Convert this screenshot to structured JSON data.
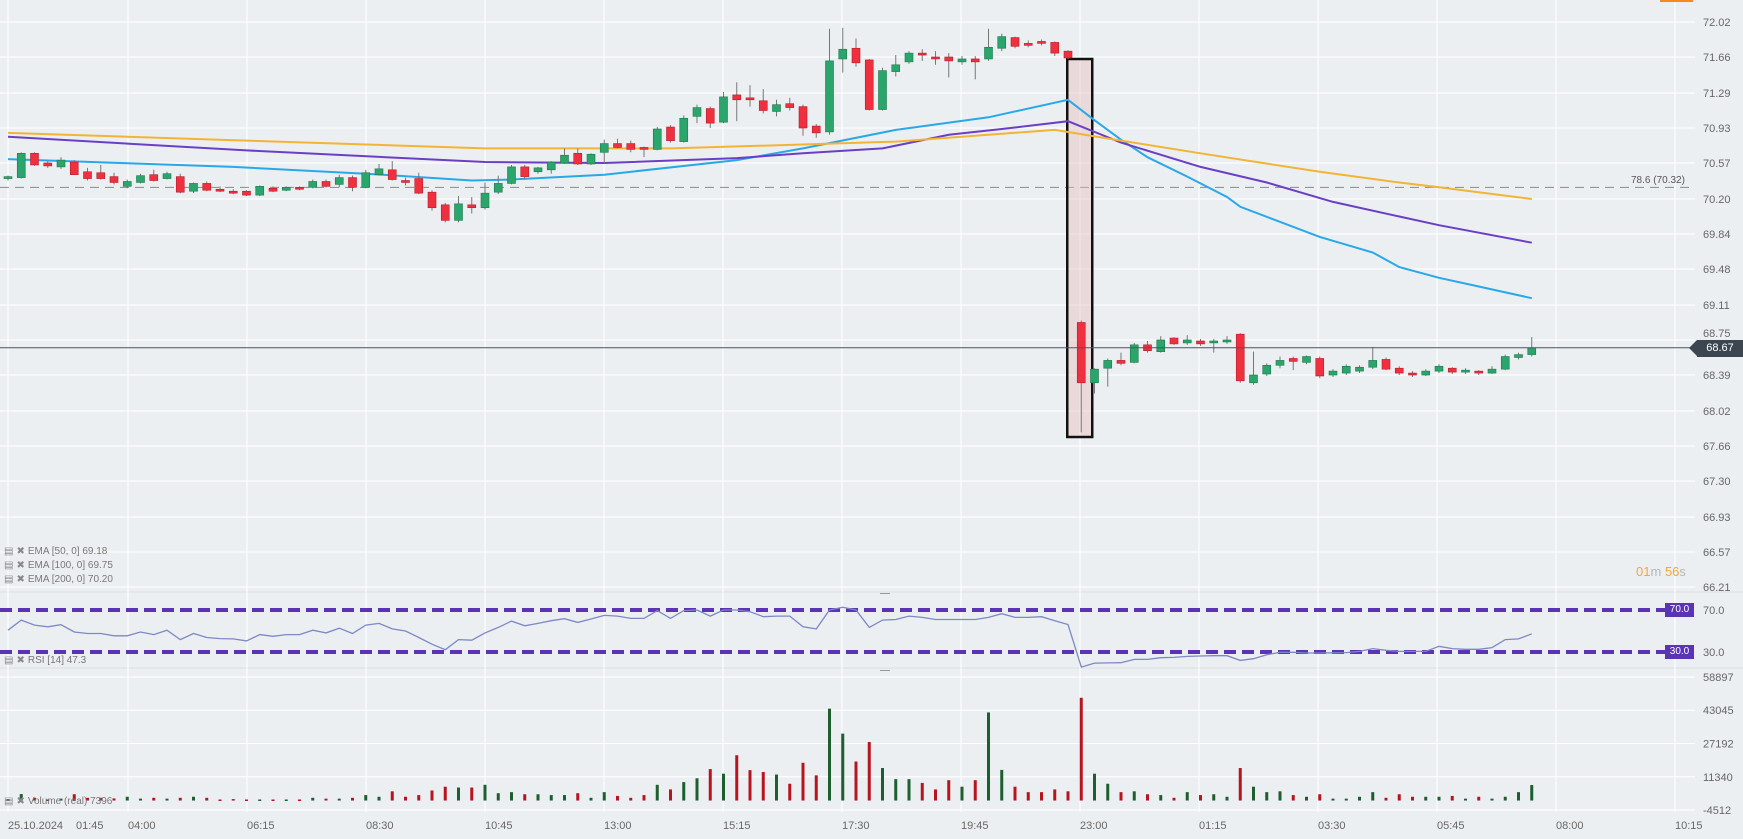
{
  "chart_data": {
    "type": "candlestick",
    "title": "",
    "price_axis": {
      "ticks": [
        72.02,
        71.66,
        71.29,
        70.93,
        70.57,
        70.2,
        69.84,
        69.48,
        69.11,
        68.75,
        68.39,
        68.02,
        67.66,
        67.3,
        66.93,
        66.57,
        66.21
      ],
      "range": [
        66.21,
        72.02
      ]
    },
    "time_axis": {
      "labels": [
        "25.10.2024",
        "01:45",
        "04:00",
        "06:15",
        "08:30",
        "10:45",
        "13:00",
        "15:15",
        "17:30",
        "19:45",
        "23:00",
        "01:15",
        "03:30",
        "05:45",
        "08:00",
        "10:15"
      ]
    },
    "candle_interval_minutes": 15,
    "candles_ohlc": [
      [
        70.41,
        70.44,
        70.39,
        70.43
      ],
      [
        70.42,
        70.68,
        70.41,
        70.67
      ],
      [
        70.67,
        70.68,
        70.54,
        70.55
      ],
      [
        70.57,
        70.59,
        70.52,
        70.54
      ],
      [
        70.53,
        70.63,
        70.51,
        70.6
      ],
      [
        70.58,
        70.6,
        70.45,
        70.45
      ],
      [
        70.48,
        70.52,
        70.39,
        70.41
      ],
      [
        70.47,
        70.55,
        70.4,
        70.41
      ],
      [
        70.43,
        70.47,
        70.35,
        70.37
      ],
      [
        70.33,
        70.4,
        70.31,
        70.38
      ],
      [
        70.37,
        70.46,
        70.36,
        70.44
      ],
      [
        70.45,
        70.5,
        70.38,
        70.39
      ],
      [
        70.41,
        70.48,
        70.4,
        70.46
      ],
      [
        70.43,
        70.46,
        70.26,
        70.27
      ],
      [
        70.28,
        70.37,
        70.26,
        70.36
      ],
      [
        70.36,
        70.38,
        70.28,
        70.29
      ],
      [
        70.3,
        70.33,
        70.27,
        70.28
      ],
      [
        70.28,
        70.3,
        70.25,
        70.26
      ],
      [
        70.28,
        70.29,
        70.23,
        70.24
      ],
      [
        70.24,
        70.34,
        70.23,
        70.33
      ],
      [
        70.31,
        70.33,
        70.27,
        70.28
      ],
      [
        70.29,
        70.33,
        70.28,
        70.32
      ],
      [
        70.32,
        70.33,
        70.29,
        70.3
      ],
      [
        70.32,
        70.4,
        70.31,
        70.38
      ],
      [
        70.38,
        70.4,
        70.32,
        70.33
      ],
      [
        70.35,
        70.45,
        70.32,
        70.42
      ],
      [
        70.42,
        70.44,
        70.28,
        70.32
      ],
      [
        70.32,
        70.5,
        70.31,
        70.47
      ],
      [
        70.45,
        70.56,
        70.44,
        70.51
      ],
      [
        70.5,
        70.59,
        70.39,
        70.4
      ],
      [
        70.39,
        70.42,
        70.34,
        70.37
      ],
      [
        70.41,
        70.47,
        70.25,
        70.26
      ],
      [
        70.27,
        70.29,
        70.08,
        70.11
      ],
      [
        70.14,
        70.16,
        69.96,
        69.98
      ],
      [
        69.98,
        70.23,
        69.96,
        70.15
      ],
      [
        70.14,
        70.22,
        70.05,
        70.11
      ],
      [
        70.11,
        70.37,
        70.09,
        70.26
      ],
      [
        70.27,
        70.44,
        70.25,
        70.36
      ],
      [
        70.36,
        70.55,
        70.35,
        70.53
      ],
      [
        70.53,
        70.55,
        70.4,
        70.43
      ],
      [
        70.48,
        70.53,
        70.46,
        70.52
      ],
      [
        70.5,
        70.59,
        70.46,
        70.58
      ],
      [
        70.57,
        70.72,
        70.56,
        70.65
      ],
      [
        70.67,
        70.72,
        70.55,
        70.56
      ],
      [
        70.56,
        70.67,
        70.55,
        70.66
      ],
      [
        70.68,
        70.81,
        70.56,
        70.77
      ],
      [
        70.77,
        70.82,
        70.72,
        70.73
      ],
      [
        70.77,
        70.8,
        70.68,
        70.71
      ],
      [
        70.73,
        70.74,
        70.63,
        70.71
      ],
      [
        70.71,
        70.94,
        70.7,
        70.92
      ],
      [
        70.94,
        70.96,
        70.78,
        70.8
      ],
      [
        70.79,
        71.06,
        70.78,
        71.03
      ],
      [
        71.05,
        71.17,
        70.98,
        71.14
      ],
      [
        71.13,
        71.15,
        70.93,
        70.98
      ],
      [
        70.99,
        71.3,
        70.98,
        71.25
      ],
      [
        71.27,
        71.4,
        71.0,
        71.22
      ],
      [
        71.24,
        71.37,
        71.15,
        71.22
      ],
      [
        71.21,
        71.33,
        71.08,
        71.11
      ],
      [
        71.1,
        71.22,
        71.05,
        71.17
      ],
      [
        71.18,
        71.24,
        71.11,
        71.14
      ],
      [
        71.15,
        71.17,
        70.85,
        70.93
      ],
      [
        70.95,
        70.97,
        70.83,
        70.88
      ],
      [
        70.89,
        71.95,
        70.86,
        71.62
      ],
      [
        71.64,
        71.96,
        71.5,
        71.74
      ],
      [
        71.75,
        71.85,
        71.56,
        71.6
      ],
      [
        71.63,
        71.64,
        71.11,
        71.12
      ],
      [
        71.12,
        71.55,
        71.11,
        71.52
      ],
      [
        71.51,
        71.68,
        71.46,
        71.58
      ],
      [
        71.61,
        71.72,
        71.59,
        71.7
      ],
      [
        71.7,
        71.74,
        71.62,
        71.68
      ],
      [
        71.66,
        71.72,
        71.58,
        71.64
      ],
      [
        71.66,
        71.7,
        71.45,
        71.62
      ],
      [
        71.61,
        71.67,
        71.58,
        71.64
      ],
      [
        71.64,
        71.67,
        71.43,
        71.61
      ],
      [
        71.64,
        71.95,
        71.62,
        71.76
      ],
      [
        71.75,
        71.9,
        71.72,
        71.87
      ],
      [
        71.86,
        71.87,
        71.75,
        71.77
      ],
      [
        71.8,
        71.83,
        71.76,
        71.78
      ],
      [
        71.82,
        71.84,
        71.78,
        71.8
      ],
      [
        71.81,
        71.82,
        71.67,
        71.7
      ],
      [
        71.72,
        71.73,
        71.64,
        71.65
      ],
      [
        68.93,
        68.95,
        67.8,
        68.31
      ],
      [
        68.31,
        68.46,
        68.2,
        68.45
      ],
      [
        68.46,
        68.56,
        68.27,
        68.54
      ],
      [
        68.54,
        68.62,
        68.49,
        68.51
      ],
      [
        68.52,
        68.72,
        68.51,
        68.7
      ],
      [
        68.7,
        68.74,
        68.62,
        68.64
      ],
      [
        68.63,
        68.79,
        68.62,
        68.75
      ],
      [
        68.77,
        68.78,
        68.7,
        68.71
      ],
      [
        68.72,
        68.8,
        68.7,
        68.75
      ],
      [
        68.74,
        68.76,
        68.69,
        68.71
      ],
      [
        68.72,
        68.76,
        68.62,
        68.74
      ],
      [
        68.73,
        68.79,
        68.71,
        68.75
      ],
      [
        68.81,
        68.82,
        68.31,
        68.33
      ],
      [
        68.31,
        68.63,
        68.29,
        68.39
      ],
      [
        68.4,
        68.51,
        68.38,
        68.49
      ],
      [
        68.49,
        68.58,
        68.46,
        68.54
      ],
      [
        68.56,
        68.58,
        68.44,
        68.53
      ],
      [
        68.52,
        68.59,
        68.5,
        68.58
      ],
      [
        68.56,
        68.58,
        68.36,
        68.38
      ],
      [
        68.39,
        68.45,
        68.37,
        68.43
      ],
      [
        68.41,
        68.5,
        68.39,
        68.48
      ],
      [
        68.43,
        68.49,
        68.41,
        68.47
      ],
      [
        68.47,
        68.68,
        68.45,
        68.54
      ],
      [
        68.55,
        68.57,
        68.44,
        68.45
      ],
      [
        68.46,
        68.48,
        68.39,
        68.41
      ],
      [
        68.41,
        68.43,
        68.37,
        68.39
      ],
      [
        68.39,
        68.45,
        68.38,
        68.43
      ],
      [
        68.43,
        68.5,
        68.41,
        68.48
      ],
      [
        68.46,
        68.47,
        68.4,
        68.42
      ],
      [
        68.42,
        68.46,
        68.4,
        68.44
      ],
      [
        68.43,
        68.44,
        68.39,
        68.41
      ],
      [
        68.41,
        68.48,
        68.4,
        68.45
      ],
      [
        68.45,
        68.6,
        68.44,
        68.58
      ],
      [
        68.57,
        68.62,
        68.55,
        68.6
      ],
      [
        68.6,
        68.78,
        68.58,
        68.67
      ]
    ],
    "highlighted_candle_index": 81,
    "current_price": {
      "value": 68.67,
      "label": "68.67"
    },
    "fib_level": {
      "value": 70.32,
      "label": "78.6 (70.32)"
    },
    "ema_series": [
      {
        "name": "EMA [50, 0] 69.18",
        "color": "#29a8e8",
        "points": [
          [
            0,
            70.61
          ],
          [
            17,
            70.53
          ],
          [
            27,
            70.46
          ],
          [
            35,
            70.39
          ],
          [
            38,
            70.4
          ],
          [
            45,
            70.45
          ],
          [
            55,
            70.6
          ],
          [
            60,
            70.72
          ],
          [
            67,
            70.91
          ],
          [
            74,
            71.04
          ],
          [
            80,
            71.22
          ],
          [
            82,
            71.01
          ],
          [
            84,
            70.81
          ],
          [
            86,
            70.63
          ],
          [
            89,
            70.43
          ],
          [
            92,
            70.22
          ],
          [
            93,
            70.12
          ],
          [
            99,
            69.81
          ],
          [
            103,
            69.65
          ],
          [
            105,
            69.5
          ],
          [
            108,
            69.39
          ],
          [
            111,
            69.3
          ],
          [
            115,
            69.18
          ]
        ]
      },
      {
        "name": "EMA [100, 0] 69.75",
        "color": "#6a3fc4",
        "points": [
          [
            0,
            70.84
          ],
          [
            18,
            70.7
          ],
          [
            36,
            70.58
          ],
          [
            45,
            70.57
          ],
          [
            55,
            70.62
          ],
          [
            60,
            70.67
          ],
          [
            66,
            70.72
          ],
          [
            71,
            70.86
          ],
          [
            75,
            70.92
          ],
          [
            80,
            71.0
          ],
          [
            84,
            70.78
          ],
          [
            90,
            70.53
          ],
          [
            95,
            70.37
          ],
          [
            100,
            70.17
          ],
          [
            105,
            70.02
          ],
          [
            108,
            69.93
          ],
          [
            115,
            69.75
          ]
        ]
      },
      {
        "name": "EMA [200, 0] 70.20",
        "color": "#f2b434",
        "points": [
          [
            0,
            70.88
          ],
          [
            18,
            70.8
          ],
          [
            36,
            70.72
          ],
          [
            50,
            70.72
          ],
          [
            60,
            70.76
          ],
          [
            67,
            70.79
          ],
          [
            79,
            70.91
          ],
          [
            84,
            70.8
          ],
          [
            90,
            70.67
          ],
          [
            99,
            70.48
          ],
          [
            105,
            70.37
          ],
          [
            108,
            70.32
          ],
          [
            115,
            70.2
          ]
        ]
      }
    ],
    "rsi": {
      "name": "RSI [14] 47.3",
      "levels": [
        {
          "value": 70,
          "label": "70.0"
        },
        {
          "value": 30,
          "label": "30.0"
        }
      ],
      "values": [
        50.8,
        60.4,
        55.6,
        54,
        56,
        49,
        47.6,
        47.6,
        45.4,
        45.4,
        49,
        46.6,
        50.8,
        41.8,
        47.6,
        43.8,
        42.8,
        42.5,
        40.6,
        46.6,
        45,
        46.6,
        46.6,
        50.8,
        48.2,
        52.7,
        47.6,
        55.6,
        57.2,
        52,
        50,
        43.8,
        37.4,
        32.2,
        41.8,
        41.2,
        48.2,
        53.4,
        59.4,
        55,
        57.2,
        59.8,
        61.7,
        58.2,
        61.4,
        64.9,
        64.2,
        62,
        62,
        69.4,
        62,
        69.4,
        70,
        64.2,
        70,
        70,
        68.4,
        63.6,
        64.2,
        64.2,
        54,
        52,
        70,
        72.6,
        70,
        53.4,
        60.4,
        61,
        64.2,
        63,
        61,
        61,
        61,
        61,
        63,
        66.5,
        63,
        63,
        63.6,
        59.8,
        56.2,
        15.6,
        19.4,
        19.6,
        19.8,
        23,
        23,
        24.6,
        24.9,
        25.8,
        26.2,
        26.5,
        26.5,
        22,
        23.6,
        27.4,
        29.7,
        29.7,
        29,
        29,
        29.2,
        29.4,
        30.6,
        33.2,
        31.6,
        30.6,
        30.6,
        30.6,
        35.4,
        33.2,
        32.6,
        32.6,
        34.2,
        41.8,
        42.5,
        47.3
      ]
    },
    "volume": {
      "name": "Volume (real) 7396",
      "axis_ticks": [
        58897,
        43045,
        27192,
        11340,
        -4512
      ],
      "values": [
        500,
        3100,
        1300,
        500,
        900,
        3000,
        1300,
        1300,
        1000,
        1800,
        900,
        1300,
        900,
        1300,
        1800,
        1300,
        500,
        700,
        500,
        500,
        500,
        500,
        500,
        1300,
        900,
        900,
        1300,
        2600,
        1800,
        4400,
        1800,
        2600,
        4800,
        6600,
        6200,
        6200,
        7500,
        3500,
        4000,
        3000,
        3000,
        2600,
        2600,
        3500,
        1300,
        4000,
        2200,
        1300,
        2600,
        7500,
        5300,
        8800,
        10600,
        15000,
        12800,
        21600,
        14500,
        13600,
        12400,
        8000,
        18000,
        12000,
        43800,
        31900,
        18600,
        27900,
        15500,
        10200,
        10200,
        8400,
        5300,
        9700,
        6600,
        9700,
        42000,
        14600,
        6600,
        4000,
        4000,
        5300,
        4400,
        49000,
        12800,
        8000,
        4000,
        4400,
        3000,
        2600,
        1300,
        4000,
        2600,
        3000,
        1800,
        15500,
        6600,
        4000,
        4400,
        2600,
        1800,
        3000,
        900,
        900,
        1800,
        4000,
        1300,
        3000,
        1800,
        1800,
        1800,
        2200,
        900,
        1800,
        900,
        1800,
        4000,
        7396
      ]
    },
    "colors": {
      "up": "#2aa56b",
      "down": "#f0303f",
      "vol_up": "#1e5f30",
      "vol_down": "#b8141f",
      "rsi_line": "#7d88c4",
      "rsi_level": "#5b33b5",
      "grid": "#ffffff",
      "background": "#eceff2"
    }
  },
  "countdown": {
    "min": "01",
    "min_unit": "m",
    "sec": "56",
    "sec_unit": "s"
  }
}
